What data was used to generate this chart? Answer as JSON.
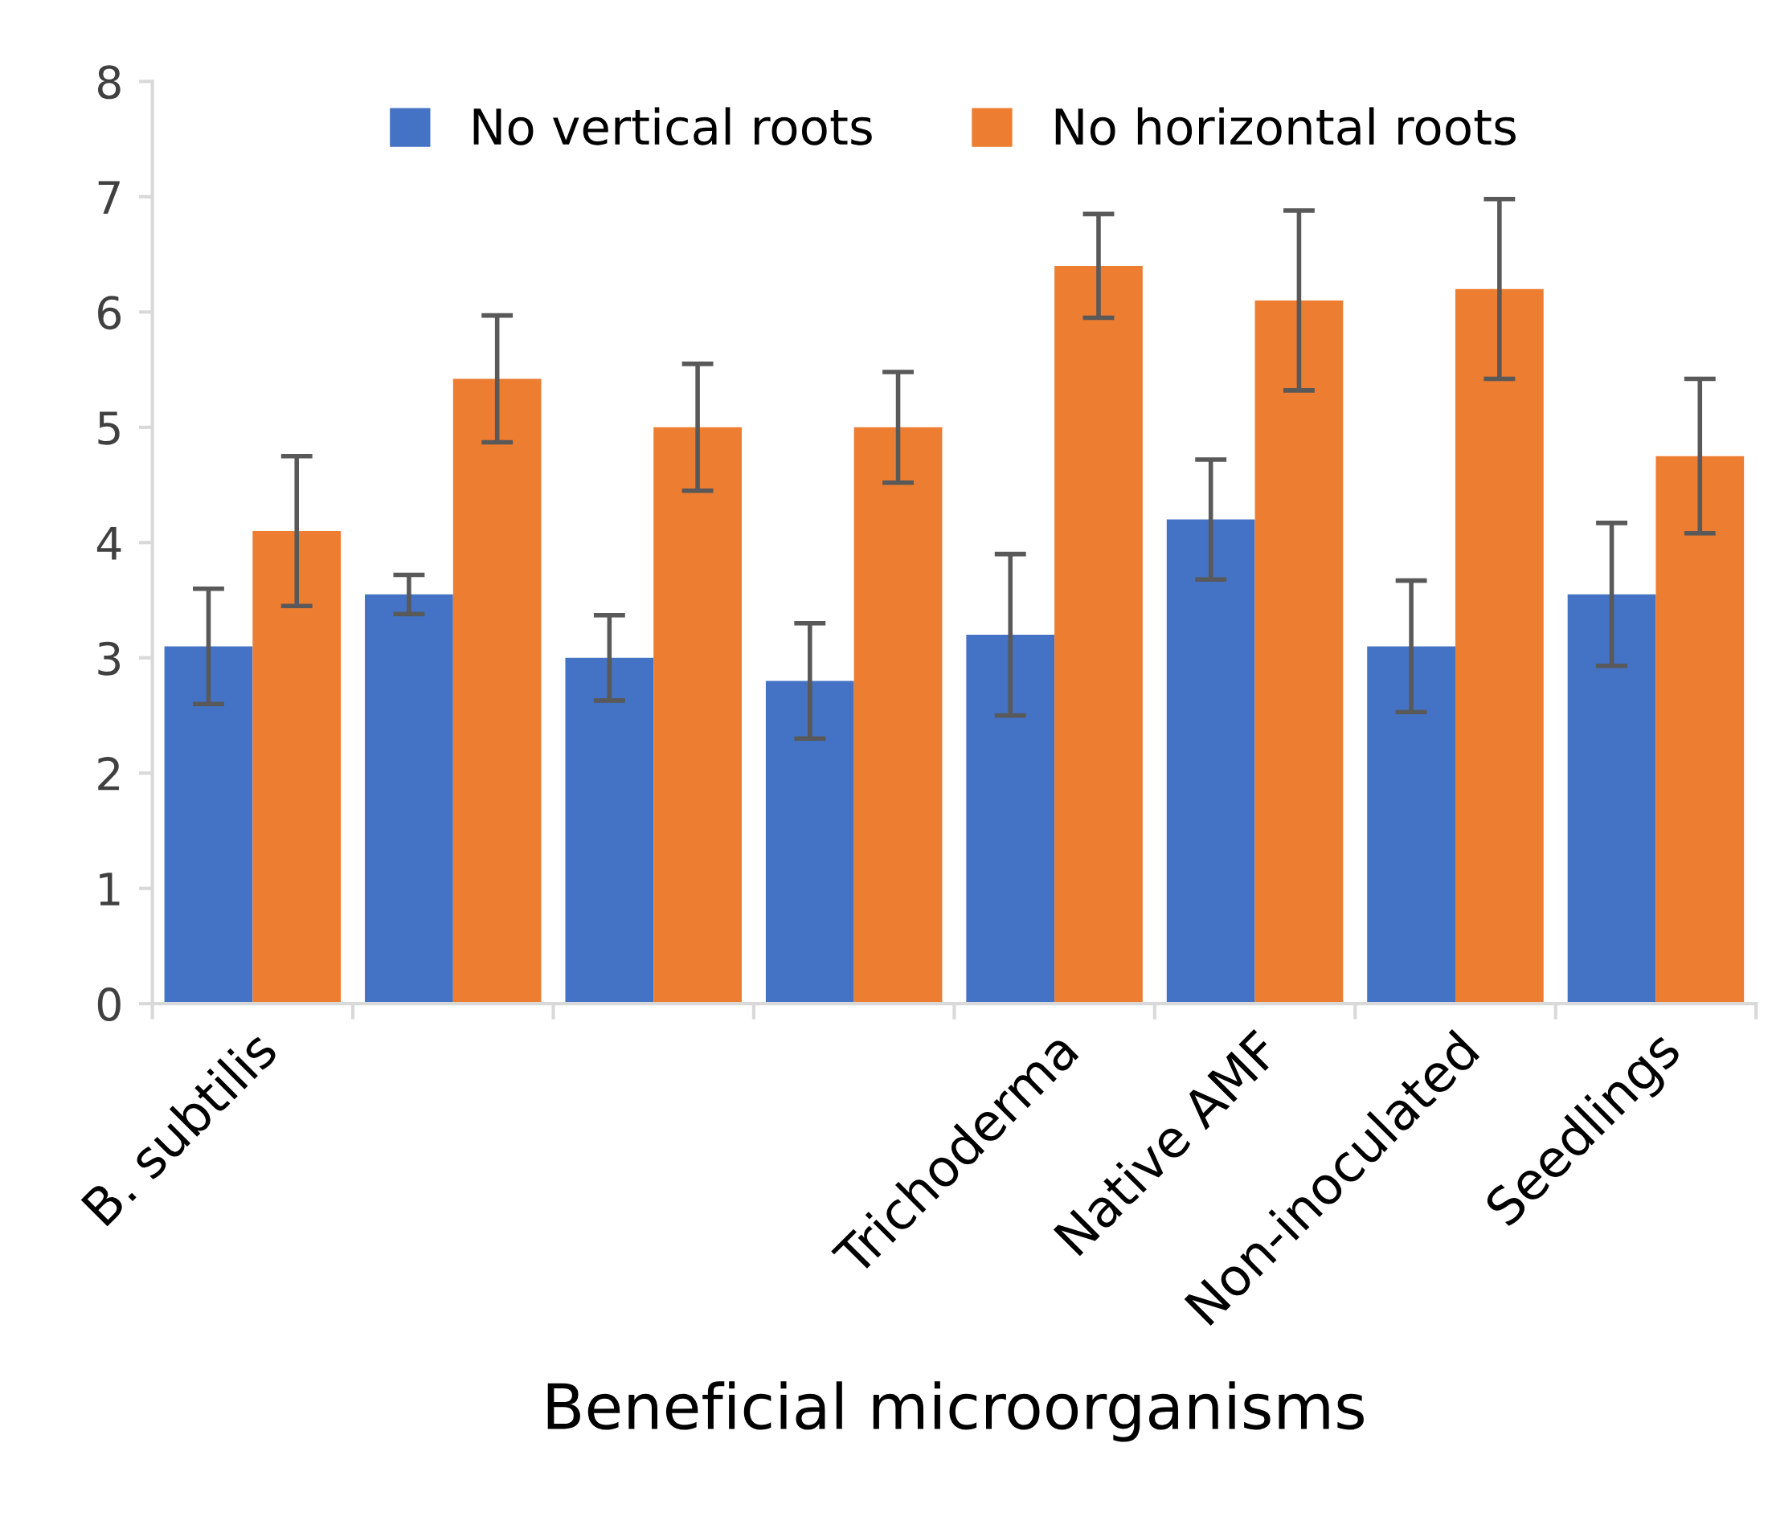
{
  "chart_data": {
    "type": "bar",
    "xlabel": "Beneficial microorganisms",
    "categories": [
      "B. subtilis",
      null,
      null,
      null,
      "Trichoderma",
      "Native AMF",
      "Non-inoculated",
      "Seedlings"
    ],
    "series": [
      {
        "name": "No vertical roots",
        "color": "#4472c4",
        "values": [
          3.1,
          3.55,
          3.0,
          2.8,
          3.2,
          4.2,
          3.1,
          3.55
        ],
        "errors": [
          0.5,
          0.17,
          0.37,
          0.5,
          0.7,
          0.52,
          0.57,
          0.62
        ]
      },
      {
        "name": "No horizontal roots",
        "color": "#ed7d31",
        "values": [
          4.1,
          5.42,
          5.0,
          5.0,
          6.4,
          6.1,
          6.2,
          4.75
        ],
        "errors": [
          0.65,
          0.55,
          0.55,
          0.48,
          0.45,
          0.78,
          0.78,
          0.67
        ]
      }
    ],
    "ylim": [
      0,
      8
    ],
    "yticks": [
      0,
      1,
      2,
      3,
      4,
      5,
      6,
      7,
      8
    ],
    "grid": false,
    "legend": "top"
  }
}
